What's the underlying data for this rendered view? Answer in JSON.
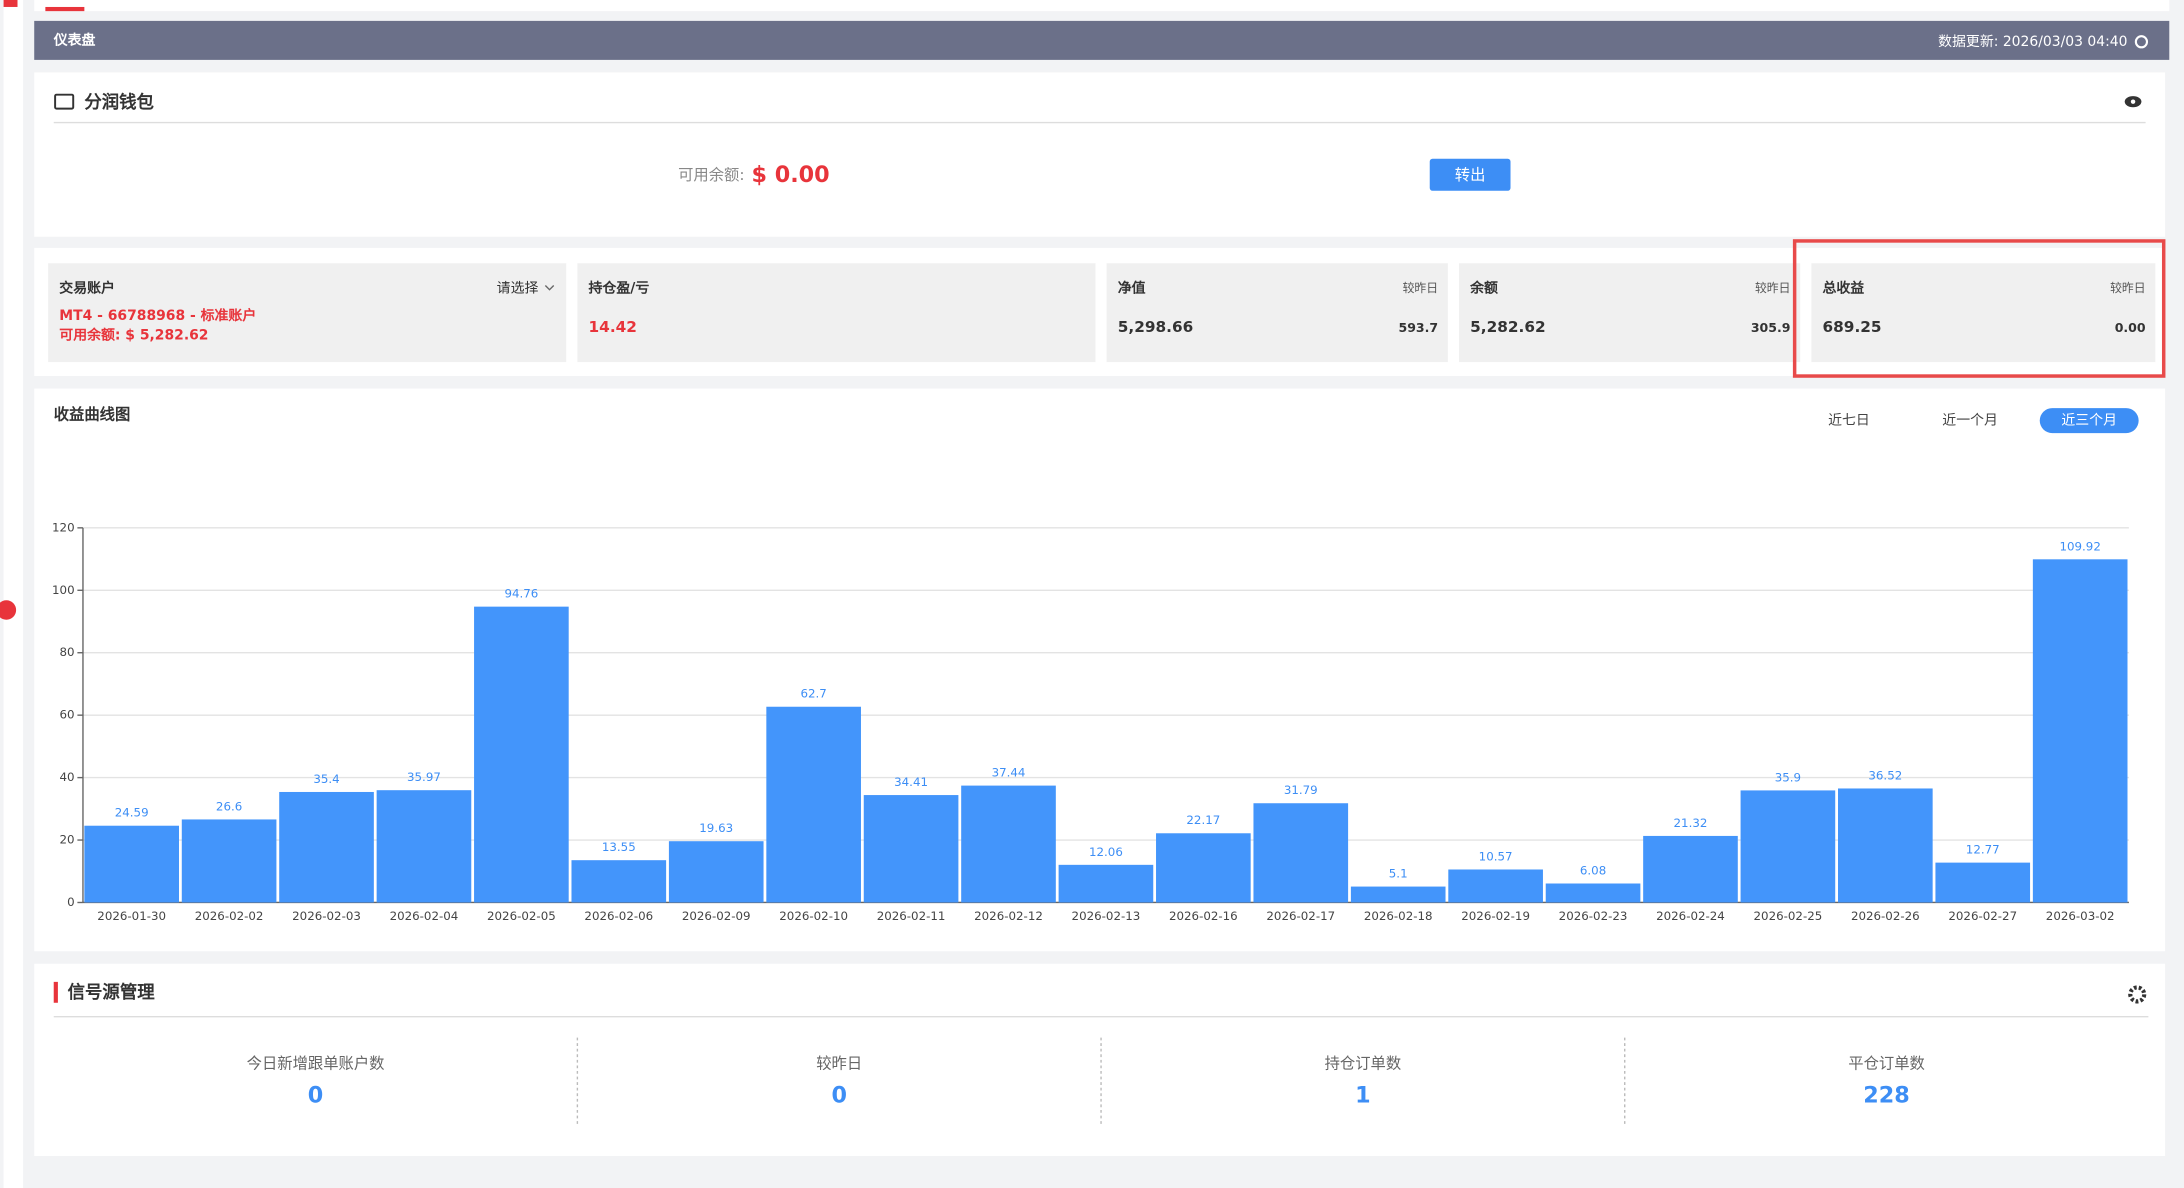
{
  "header": {
    "title": "仪表盘",
    "update": "数据更新: 2026/03/03 04:40"
  },
  "wallet": {
    "title": "分润钱包",
    "balance_label": "可用余额:",
    "balance": "$ 0.00",
    "button": "转出"
  },
  "account": {
    "title": "交易账户",
    "select": "请选择",
    "account": "MT4 - 66788968 - 标准账户",
    "balance": "可用余额: $ 5,282.62"
  },
  "position": {
    "title": "持仓盈/亏",
    "value": "14.42"
  },
  "metrics": [
    {
      "title": "净值",
      "compare": "较昨日",
      "value": "5,298.66",
      "change": "593.7"
    },
    {
      "title": "余额",
      "compare": "较昨日",
      "value": "5,282.62",
      "change": "305.9"
    },
    {
      "title": "总收益",
      "compare": "较昨日",
      "value": "689.25",
      "change": "0.00"
    }
  ],
  "chart_data": {
    "type": "bar",
    "title": "收益曲线图",
    "range_buttons": [
      "近七日",
      "近一个月",
      "近三个月"
    ],
    "active_range": 2,
    "categories": [
      "2026-01-30",
      "2026-02-02",
      "2026-02-03",
      "2026-02-04",
      "2026-02-05",
      "2026-02-06",
      "2026-02-09",
      "2026-02-10",
      "2026-02-11",
      "2026-02-12",
      "2026-02-13",
      "2026-02-16",
      "2026-02-17",
      "2026-02-18",
      "2026-02-19",
      "2026-02-23",
      "2026-02-24",
      "2026-02-25",
      "2026-02-26",
      "2026-02-27",
      "2026-03-02"
    ],
    "values": [
      24.59,
      26.6,
      35.4,
      35.97,
      94.76,
      13.55,
      19.63,
      62.7,
      34.41,
      37.44,
      12.06,
      22.17,
      31.79,
      5.1,
      10.57,
      6.08,
      21.32,
      35.9,
      36.52,
      12.77,
      109.92
    ],
    "color": "#4395fb",
    "label_color": "#3d8ef5",
    "ylim": [
      0,
      120
    ],
    "yticks": [
      0,
      20,
      40,
      60,
      80,
      100,
      120
    ],
    "grid": true
  },
  "signals": {
    "title": "信号源管理",
    "items": [
      {
        "label": "今日新增跟单账户数",
        "value": "0"
      },
      {
        "label": "较昨日",
        "value": "0"
      },
      {
        "label": "持仓订单数",
        "value": "1"
      },
      {
        "label": "平仓订单数",
        "value": "228"
      }
    ]
  }
}
